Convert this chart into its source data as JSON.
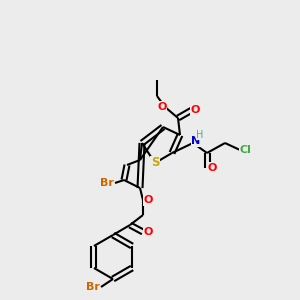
{
  "bg_color": "#ececec",
  "bond_color": "#000000",
  "bond_width": 1.5,
  "atom_colors": {
    "O": "#ff0000",
    "S": "#ccaa00",
    "N": "#0000cc",
    "Br": "#cc6600",
    "Cl": "#44aa44",
    "H": "#44aaaa",
    "C": "#000000"
  },
  "font_size": 7.5
}
